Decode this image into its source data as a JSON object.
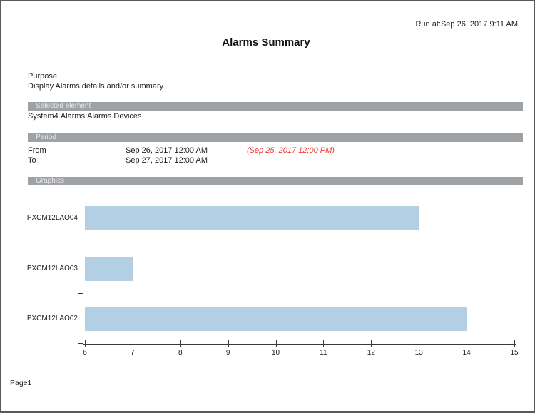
{
  "header": {
    "run_at": "Run at:Sep 26, 2017 9:11 AM",
    "title": "Alarms Summary"
  },
  "purpose": {
    "label": "Purpose:",
    "text": "Display Alarms details and/or summary"
  },
  "selected_element": {
    "section_label": "Selected element",
    "value": "System4.Alarms:Alarms.Devices"
  },
  "period": {
    "section_label": "Period",
    "from_label": "From",
    "from_value": "Sep 26, 2017 12:00 AM",
    "from_note": "(Sep 25, 2017 12:00 PM)",
    "to_label": "To",
    "to_value": "Sep 27, 2017 12:00 AM"
  },
  "graphics": {
    "section_label": "Graphics"
  },
  "chart_data": {
    "type": "bar",
    "orientation": "horizontal",
    "categories": [
      "PXCM12LAO04",
      "PXCM12LAO03",
      "PXCM12LAO02"
    ],
    "values": [
      13,
      7,
      14
    ],
    "xlim": [
      6,
      15
    ],
    "x_ticks": [
      6,
      7,
      8,
      9,
      10,
      11,
      12,
      13,
      14,
      15
    ],
    "bar_color": "#b2cfe3",
    "axis_color": "#3a3a3a",
    "grid": false,
    "legend": false,
    "title": "",
    "xlabel": "",
    "ylabel": ""
  },
  "footer": {
    "page_label": "Page1"
  },
  "colors": {
    "section_bar_bg": "#9ea2a5",
    "section_bar_text": "#e9eaeb",
    "note_red": "#ef3e36",
    "page_border": "#58595b"
  }
}
